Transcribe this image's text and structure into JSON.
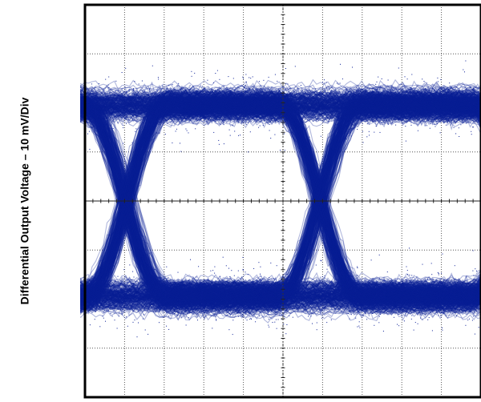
{
  "chart_data": {
    "type": "scatter",
    "title": "",
    "ylabel": "Differential Output Voltage – 10 mV/Div",
    "xlabel": "",
    "grid": true,
    "x_divisions": 10,
    "y_divisions": 8,
    "xlim": [
      0,
      10
    ],
    "ylim": [
      -4,
      4
    ],
    "trace_color": "#0a1e96",
    "background_color": "#ffffff",
    "grid_color": "#555555",
    "frame_color": "#000000",
    "eye_pattern": {
      "unit_interval_divisions": 4.9,
      "first_crossing_x": 4.9,
      "level_high": 1.95,
      "level_low": -1.95,
      "band_half_width": 0.85,
      "eye_openings": [
        {
          "center_x": 2.45,
          "half_width": 1.8,
          "half_height": 1.0
        },
        {
          "center_x": 7.35,
          "half_width": 1.8,
          "half_height": 1.0
        }
      ],
      "crossing_points_x": [
        0.0,
        4.9,
        9.8
      ]
    }
  }
}
